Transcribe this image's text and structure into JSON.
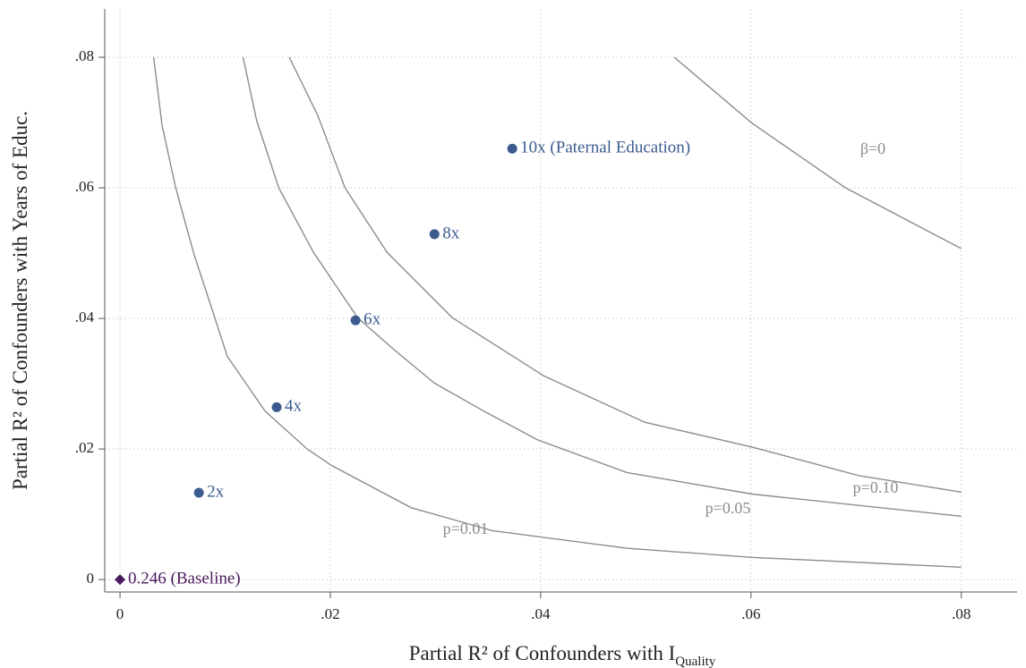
{
  "chart_data": {
    "type": "scatter",
    "x_label": {
      "text": "Partial R² of Confounders with I",
      "sub": "Quality"
    },
    "y_label": "Partial R² of Confounders with Years of Educ.",
    "xlim": [
      -0.00145,
      0.0853
    ],
    "ylim": [
      -0.0019,
      0.0874
    ],
    "xticks": [
      0,
      {
        "value": 0.02,
        "label": ".02"
      },
      {
        "value": 0.04,
        "label": ".04"
      },
      {
        "value": 0.06,
        "label": ".06"
      },
      {
        "value": 0.08,
        "label": ".08"
      }
    ],
    "yticks": [
      0,
      {
        "value": 0.02,
        "label": ".02"
      },
      {
        "value": 0.04,
        "label": ".04"
      },
      {
        "value": 0.06,
        "label": ".06"
      },
      {
        "value": 0.08,
        "label": ".08"
      }
    ],
    "grid": true,
    "series": [
      {
        "name": "p=0.01",
        "type": "line",
        "color": "#8c8c8c",
        "x": [
          0.0032,
          0.004,
          0.0053,
          0.007,
          0.0093,
          0.0102,
          0.012,
          0.0138,
          0.0178,
          0.0201,
          0.0277,
          0.0354,
          0.0482,
          0.0601,
          0.08
        ],
        "y": [
          0.08,
          0.0696,
          0.06,
          0.05,
          0.0387,
          0.0342,
          0.03,
          0.0258,
          0.02,
          0.0175,
          0.011,
          0.0075,
          0.0048,
          0.0034,
          0.0019
        ]
      },
      {
        "name": "p=0.05",
        "type": "line",
        "color": "#8c8c8c",
        "x": [
          0.0117,
          0.013,
          0.0151,
          0.0184,
          0.0226,
          0.026,
          0.0299,
          0.0346,
          0.0397,
          0.0482,
          0.0601,
          0.08
        ],
        "y": [
          0.08,
          0.0703,
          0.06,
          0.0501,
          0.0401,
          0.0353,
          0.0301,
          0.0258,
          0.0214,
          0.0164,
          0.0131,
          0.0097
        ]
      },
      {
        "name": "p=0.10",
        "type": "line",
        "color": "#8c8c8c",
        "x": [
          0.0161,
          0.0188,
          0.0214,
          0.0254,
          0.0316,
          0.0403,
          0.0499,
          0.0601,
          0.0703,
          0.08
        ],
        "y": [
          0.08,
          0.0711,
          0.06,
          0.0501,
          0.0401,
          0.0312,
          0.0241,
          0.0203,
          0.0159,
          0.0134
        ]
      },
      {
        "name": "β=0",
        "type": "line",
        "color": "#8c8c8c",
        "x": [
          0.0527,
          0.0601,
          0.069,
          0.08
        ],
        "y": [
          0.08,
          0.0699,
          0.06,
          0.0507
        ]
      },
      {
        "type": "scatter",
        "marker": "circle",
        "color": "#3b5b8f",
        "x": [
          0.0075,
          0.0149,
          0.0224,
          0.0299,
          0.0373
        ],
        "y": [
          0.0133,
          0.0264,
          0.0397,
          0.0529,
          0.066
        ],
        "labels": [
          "2x",
          "4x",
          "6x",
          "8x",
          "10x (Paternal Education)"
        ]
      },
      {
        "type": "scatter",
        "marker": "diamond",
        "color": "#4b1a5e",
        "x": [
          0
        ],
        "y": [
          0
        ],
        "labels": [
          "0.246 (Baseline)"
        ]
      }
    ]
  }
}
